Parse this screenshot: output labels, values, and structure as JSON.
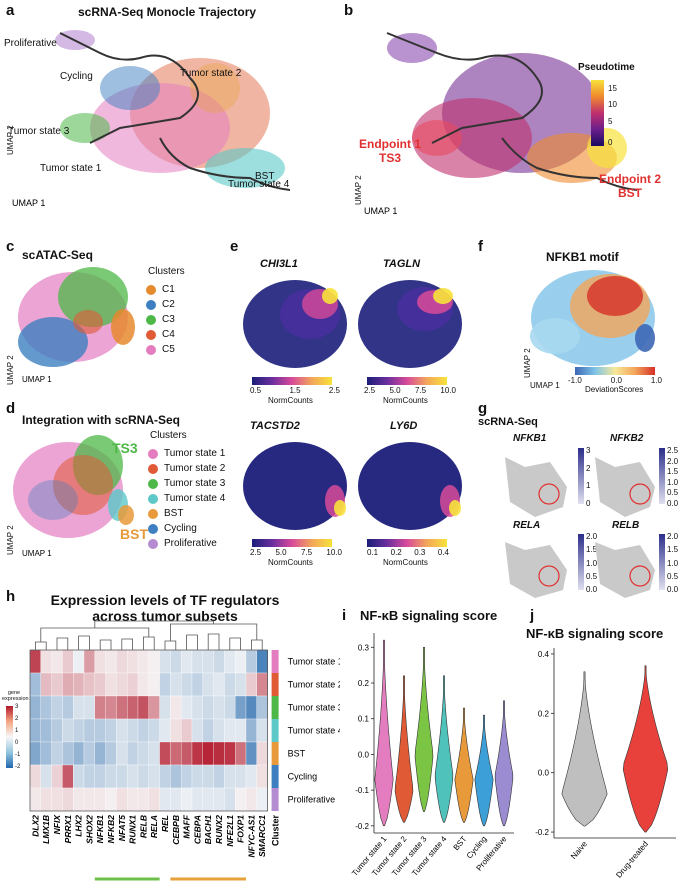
{
  "panels": {
    "a": {
      "label": "a",
      "title": "scRNA-Seq Monocle Trajectory",
      "states": [
        "Proliferative",
        "Cycling",
        "Tumor state 2",
        "Tumor state 3",
        "BST",
        "Tumor state 1",
        "Tumor state 4"
      ],
      "axis_x": "UMAP 1",
      "axis_y": "UMAP 2"
    },
    "b": {
      "label": "b",
      "legend_title": "Pseudotime",
      "ticks": [
        "15",
        "10",
        "5",
        "0"
      ],
      "endpoint1_line1": "Endpoint 1",
      "endpoint1_line2": "TS3",
      "endpoint2_line1": "Endpoint 2",
      "endpoint2_line2": "BST",
      "axis_x": "UMAP 1",
      "axis_y": "UMAP 2"
    },
    "c": {
      "label": "c",
      "title": "scATAC-Seq",
      "legend_title": "Clusters",
      "clusters": [
        {
          "name": "C1",
          "color": "#E68A2E"
        },
        {
          "name": "C2",
          "color": "#3D7FC1"
        },
        {
          "name": "C3",
          "color": "#4DB847"
        },
        {
          "name": "C4",
          "color": "#E05A35"
        },
        {
          "name": "C5",
          "color": "#E37DC0"
        }
      ],
      "axis_x": "UMAP 1",
      "axis_y": "UMAP 2"
    },
    "d": {
      "label": "d",
      "title": "Integration with scRNA-Seq",
      "legend_title": "Clusters",
      "clusters": [
        {
          "name": "Tumor state 1",
          "color": "#E37DC0"
        },
        {
          "name": "Tumor state 2",
          "color": "#E05A35"
        },
        {
          "name": "Tumor state 3",
          "color": "#4DB847"
        },
        {
          "name": "Tumor state 4",
          "color": "#5CC8C8"
        },
        {
          "name": "BST",
          "color": "#E89A3A"
        },
        {
          "name": "Cycling",
          "color": "#3D7FC1"
        },
        {
          "name": "Proliferative",
          "color": "#B58BD1"
        }
      ],
      "ts3": "TS3",
      "bst": "BST",
      "axis_x": "UMAP 1",
      "axis_y": "UMAP 2"
    },
    "e": {
      "label": "e",
      "genes": [
        {
          "name": "CHI3L1",
          "ticks": [
            "0.5",
            "1.5",
            "2.5"
          ],
          "unit": "NormCounts"
        },
        {
          "name": "TAGLN",
          "ticks": [
            "2.5",
            "5.0",
            "7.5",
            "10.0"
          ],
          "unit": "NormCounts"
        },
        {
          "name": "TACSTD2",
          "ticks": [
            "2.5",
            "5.0",
            "7.5",
            "10.0"
          ],
          "unit": "NormCounts"
        },
        {
          "name": "LY6D",
          "ticks": [
            "0.1",
            "0.2",
            "0.3",
            "0.4"
          ],
          "unit": "NormCounts"
        }
      ]
    },
    "f": {
      "label": "f",
      "title": "NFKB1 motif",
      "ticks": [
        "-1.0",
        "0.0",
        "1.0"
      ],
      "unit": "DeviationScores",
      "axis_x": "UMAP 1",
      "axis_y": "UMAP 2"
    },
    "g": {
      "label": "g",
      "title": "scRNA-Seq",
      "genes": [
        {
          "name": "NFKB1",
          "ticks": [
            "3",
            "2",
            "1",
            "0"
          ]
        },
        {
          "name": "NFKB2",
          "ticks": [
            "2.5",
            "2.0",
            "1.5",
            "1.0",
            "0.5",
            "0.0"
          ]
        },
        {
          "name": "RELA",
          "ticks": [
            "2.0",
            "1.5",
            "1.0",
            "0.5",
            "0.0"
          ]
        },
        {
          "name": "RELB",
          "ticks": [
            "2.0",
            "1.5",
            "1.0",
            "0.5",
            "0.0"
          ]
        }
      ]
    },
    "h": {
      "label": "h",
      "title_line1": "Expression levels of TF regulators",
      "title_line2": "across tumor subsets",
      "legend_title_line1": "gene",
      "legend_title_line2": "expression",
      "legend_ticks": [
        "3",
        "2",
        "1",
        "0",
        "-1",
        "-2"
      ],
      "cluster_label": "Cluster"
    },
    "i": {
      "label": "i",
      "title": "NF-κB signaling score"
    },
    "j": {
      "label": "j",
      "title": "NF-κB signaling score"
    }
  },
  "chart_data": [
    {
      "type": "heatmap",
      "id": "h",
      "columns": [
        "DLX2",
        "LMX1B",
        "NFIX",
        "PRRX1",
        "LHX2",
        "SHOX2",
        "NFKB1",
        "NFKB2",
        "NFAT5",
        "RUNX1",
        "RELB",
        "RELA",
        "REL",
        "CEBPB",
        "MAFF",
        "CEBPA",
        "BACH1",
        "RUNX2",
        "NFE2L1",
        "FOXP1",
        "NFYC-AS1",
        "SMARCC1"
      ],
      "rows": [
        "Tumor state 1",
        "Tumor state 2",
        "Tumor state 3",
        "Tumor state 4",
        "BST",
        "Cycling",
        "Proliferative"
      ],
      "row_colors": [
        "#E37DC0",
        "#E05A35",
        "#4DB847",
        "#5CC8C8",
        "#E89A3A",
        "#3D7FC1",
        "#B58BD1"
      ],
      "values": [
        [
          2.4,
          0.3,
          0.2,
          0.6,
          -0.1,
          1.2,
          0.3,
          0.2,
          0.4,
          0.3,
          0.2,
          0.1,
          -0.3,
          -0.4,
          -0.2,
          -0.3,
          -0.3,
          -0.4,
          -0.2,
          -0.1,
          -0.6,
          -1.6
        ],
        [
          -0.8,
          0.8,
          0.6,
          1.0,
          0.9,
          0.7,
          0.6,
          0.3,
          0.4,
          0.5,
          0.2,
          0.1,
          -0.5,
          -0.3,
          -0.4,
          -0.5,
          -0.3,
          -0.2,
          -0.4,
          -0.3,
          0.6,
          1.5
        ],
        [
          -0.9,
          -0.7,
          -0.5,
          -0.6,
          -0.3,
          -0.3,
          1.6,
          1.5,
          1.8,
          2.0,
          2.2,
          1.3,
          -0.3,
          0.2,
          -0.2,
          -0.3,
          -0.4,
          -0.3,
          -0.4,
          -1.2,
          -1.5,
          -0.7
        ],
        [
          -0.9,
          -0.8,
          -0.6,
          -0.4,
          -0.5,
          -0.6,
          -0.6,
          -0.5,
          -0.3,
          -0.4,
          -0.5,
          -0.4,
          -0.2,
          0.3,
          0.6,
          -0.3,
          -0.5,
          -0.3,
          -0.2,
          -0.2,
          -0.9,
          -0.3
        ],
        [
          -1.1,
          -0.8,
          -0.5,
          -0.7,
          -0.9,
          -0.6,
          -0.9,
          -0.6,
          -0.3,
          -0.5,
          -0.4,
          -0.3,
          2.3,
          1.9,
          2.1,
          2.6,
          2.8,
          2.7,
          2.6,
          1.8,
          -1.4,
          0.4
        ],
        [
          0.4,
          -0.3,
          0.5,
          2.1,
          -0.4,
          -0.5,
          -0.5,
          -0.4,
          -0.4,
          -0.3,
          -0.4,
          -0.3,
          -0.5,
          -0.7,
          -0.5,
          -0.4,
          -0.4,
          -0.5,
          -0.3,
          -0.3,
          -0.2,
          0.3
        ],
        [
          0.2,
          0.3,
          0.3,
          0.4,
          0.2,
          0.2,
          0.2,
          0.1,
          0.3,
          0.2,
          0.2,
          0.3,
          -0.2,
          -0.2,
          -0.1,
          -0.2,
          -0.2,
          -0.2,
          -0.3,
          0.1,
          0.2,
          -0.1
        ]
      ]
    },
    {
      "type": "violin",
      "id": "i",
      "title": "NF-κB signaling score",
      "categories": [
        "Tumor state 1",
        "Tumor state 2",
        "Tumor state 3",
        "Tumor state 4",
        "BST",
        "Cycling",
        "Proliferative"
      ],
      "colors": [
        "#E37DC0",
        "#E05A35",
        "#7CC443",
        "#4FC2BB",
        "#E89A3A",
        "#3D9FD8",
        "#9B8BD1"
      ],
      "min": [
        -0.2,
        -0.19,
        -0.16,
        -0.19,
        -0.19,
        -0.2,
        -0.2
      ],
      "max": [
        0.32,
        0.22,
        0.3,
        0.22,
        0.13,
        0.11,
        0.15
      ],
      "mode": [
        -0.07,
        -0.1,
        0.0,
        -0.06,
        -0.07,
        -0.07,
        -0.06
      ],
      "ylim": [
        -0.22,
        0.34
      ],
      "yticks": [
        0.3,
        0.2,
        0.1,
        0.0,
        -0.1,
        -0.2
      ]
    },
    {
      "type": "violin",
      "id": "j",
      "title": "NF-κB signaling score",
      "categories": [
        "Naive",
        "Drug-treated"
      ],
      "colors": [
        "#BFBFBF",
        "#E8403A"
      ],
      "min": [
        -0.18,
        -0.2
      ],
      "max": [
        0.34,
        0.36
      ],
      "mode": [
        -0.07,
        0.02
      ],
      "ylim": [
        -0.22,
        0.42
      ],
      "yticks": [
        0.4,
        0.2,
        0.0,
        -0.2
      ]
    }
  ]
}
